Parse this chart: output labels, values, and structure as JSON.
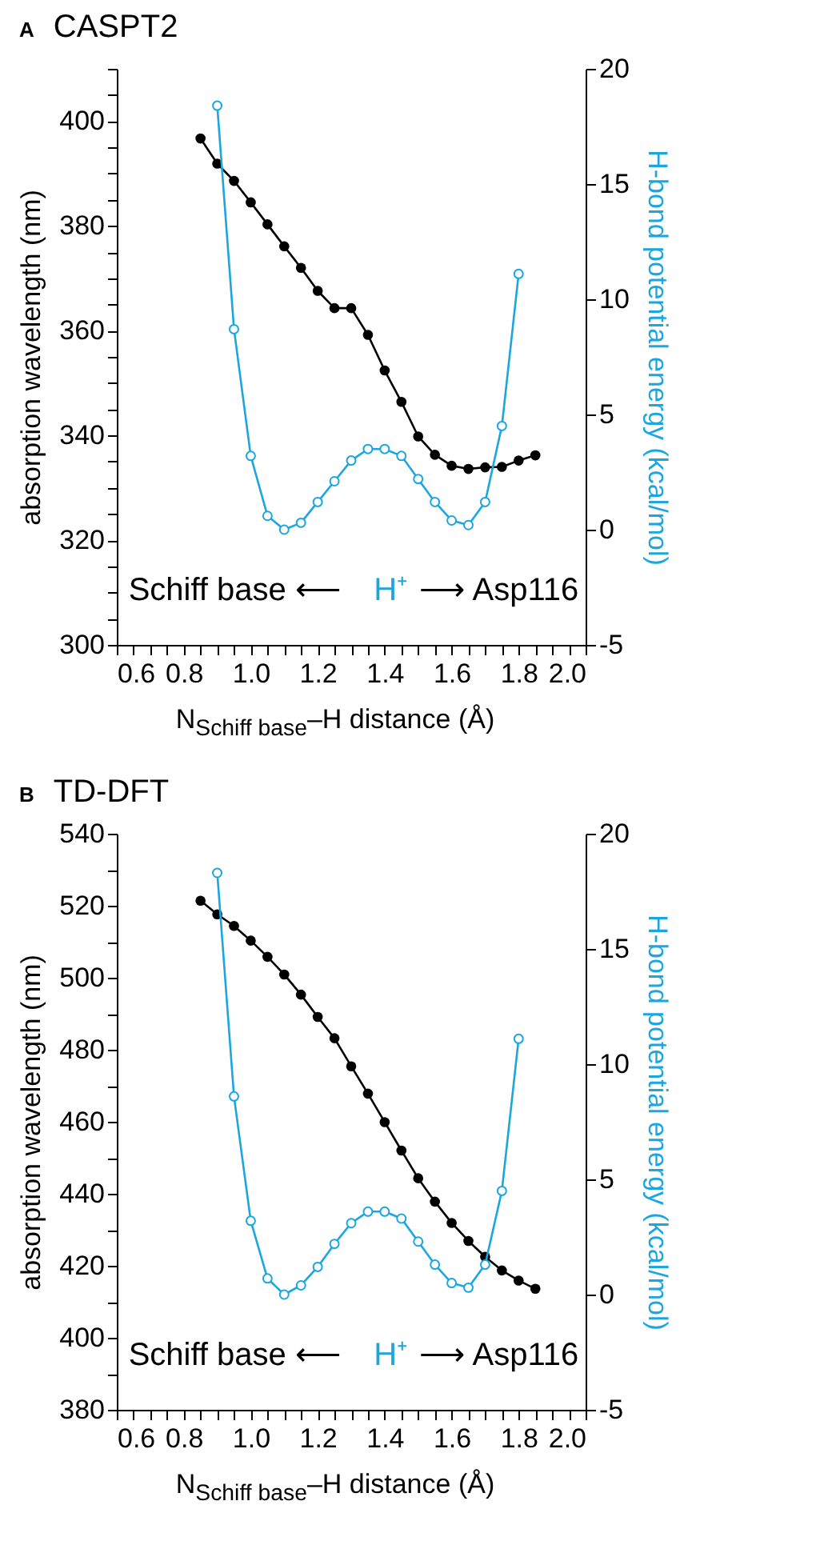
{
  "chart_data": [
    {
      "type": "line",
      "title": "CASPT2",
      "xlabel": "N$_{Schiff base}$–H distance (Å)",
      "ylabel": "absorption wavelength (nm)",
      "y2label": "H-bond potential energy (kcal/mol)",
      "annotations": [
        "A",
        "Schiff base ⟵",
        "H⁺",
        "⟶ Asp116"
      ],
      "x": [
        0.85,
        0.9,
        0.95,
        1,
        1.05,
        1.1,
        1.15,
        1.2,
        1.25,
        1.3,
        1.35,
        1.4,
        1.45,
        1.5,
        1.55,
        1.6,
        1.65,
        1.7,
        1.75,
        1.8,
        1.85
      ],
      "series": [
        {
          "color": "#000000",
          "values": [
            396.7,
            391.9,
            388.6,
            384.5,
            380.3,
            376.1,
            372.0,
            367.6,
            364.3,
            364.3,
            359.2,
            352.4,
            346.4,
            339.8,
            336.3,
            334.2,
            333.6,
            333.9,
            334.0,
            335.2,
            336.2
          ]
        },
        {
          "color": "#1ba6e0",
          "axis": "y2",
          "values": [
            null,
            18.4,
            8.7,
            3.2,
            0.6,
            0.0,
            0.3,
            1.2,
            2.1,
            3.0,
            3.5,
            3.5,
            3.2,
            2.2,
            1.2,
            0.4,
            0.2,
            1.2,
            4.5,
            11.1,
            null
          ]
        }
      ],
      "xlim": [
        0.6,
        2.0
      ],
      "xticks": [
        {
          "value": 0.6,
          "label": "0.6"
        },
        {
          "value": 0.65,
          "label": null
        },
        {
          "value": 0.7,
          "label": null
        },
        {
          "value": 0.75,
          "label": null
        },
        {
          "value": 0.8,
          "label": "0.8"
        },
        {
          "value": 0.85,
          "label": null
        },
        {
          "value": 0.9,
          "label": null
        },
        {
          "value": 0.95,
          "label": null
        },
        {
          "value": 1,
          "label": "1.0"
        },
        {
          "value": 1.05,
          "label": null
        },
        {
          "value": 1.1,
          "label": null
        },
        {
          "value": 1.15,
          "label": null
        },
        {
          "value": 1.2,
          "label": "1.2"
        },
        {
          "value": 1.25,
          "label": null
        },
        {
          "value": 1.3,
          "label": null
        },
        {
          "value": 1.35,
          "label": null
        },
        {
          "value": 1.4,
          "label": "1.4"
        },
        {
          "value": 1.45,
          "label": null
        },
        {
          "value": 1.5,
          "label": null
        },
        {
          "value": 1.55,
          "label": null
        },
        {
          "value": 1.6,
          "label": "1.6"
        },
        {
          "value": 1.65,
          "label": null
        },
        {
          "value": 1.7,
          "label": null
        },
        {
          "value": 1.75,
          "label": null
        },
        {
          "value": 1.8,
          "label": "1.8"
        },
        {
          "value": 1.85,
          "label": null
        },
        {
          "value": 1.9,
          "label": null
        },
        {
          "value": 1.95,
          "label": null
        },
        {
          "value": 2,
          "label": "2.0"
        }
      ],
      "ylim": [
        300,
        410
      ],
      "yticks": [
        300,
        {
          "value": 305,
          "label": null
        },
        {
          "value": 310,
          "label": null
        },
        {
          "value": 315,
          "label": null
        },
        320,
        {
          "value": 325,
          "label": null
        },
        {
          "value": 330,
          "label": null
        },
        {
          "value": 335,
          "label": null
        },
        340,
        {
          "value": 345,
          "label": null
        },
        {
          "value": 350,
          "label": null
        },
        {
          "value": 355,
          "label": null
        },
        360,
        {
          "value": 365,
          "label": null
        },
        {
          "value": 370,
          "label": null
        },
        {
          "value": 375,
          "label": null
        },
        380,
        {
          "value": 385,
          "label": null
        },
        {
          "value": 390,
          "label": null
        },
        {
          "value": 395,
          "label": null
        },
        400,
        {
          "value": 405,
          "label": null
        },
        {
          "value": 410,
          "label": null
        }
      ],
      "y2lim": [
        -5,
        20
      ],
      "y2ticks": [
        -5,
        0,
        5,
        10,
        15,
        20
      ],
      "marker": "circle"
    },
    {
      "type": "line",
      "title": "TD-DFT",
      "xlabel": "N$_{Schiff base}$–H distance (Å)",
      "ylabel": "absorption wavelength (nm)",
      "y2label": "H-bond potential energy (kcal/mol)",
      "annotations": [
        "B",
        "Schiff base ⟵",
        "H⁺",
        "⟶ Asp116"
      ],
      "x": [
        0.85,
        0.9,
        0.95,
        1,
        1.05,
        1.1,
        1.15,
        1.2,
        1.25,
        1.3,
        1.35,
        1.4,
        1.45,
        1.5,
        1.55,
        1.6,
        1.65,
        1.7,
        1.75,
        1.8,
        1.85
      ],
      "series": [
        {
          "color": "#000000",
          "values": [
            521.4,
            517.6,
            514.4,
            510.3,
            505.8,
            500.9,
            495.3,
            489.1,
            483.2,
            475.4,
            467.8,
            459.9,
            452.0,
            444.3,
            437.8,
            431.9,
            426.9,
            422.5,
            418.7,
            415.9,
            413.6
          ]
        },
        {
          "color": "#1ba6e0",
          "axis": "y2",
          "values": [
            null,
            18.3,
            8.6,
            3.2,
            0.7,
            0.0,
            0.4,
            1.2,
            2.2,
            3.1,
            3.6,
            3.6,
            3.3,
            2.3,
            1.3,
            0.5,
            0.3,
            1.3,
            4.5,
            11.1,
            null
          ]
        }
      ],
      "xlim": [
        0.6,
        2.0
      ],
      "xticks": [
        {
          "value": 0.6,
          "label": "0.6"
        },
        {
          "value": 0.65,
          "label": null
        },
        {
          "value": 0.7,
          "label": null
        },
        {
          "value": 0.75,
          "label": null
        },
        {
          "value": 0.8,
          "label": "0.8"
        },
        {
          "value": 0.85,
          "label": null
        },
        {
          "value": 0.9,
          "label": null
        },
        {
          "value": 0.95,
          "label": null
        },
        {
          "value": 1,
          "label": "1.0"
        },
        {
          "value": 1.05,
          "label": null
        },
        {
          "value": 1.1,
          "label": null
        },
        {
          "value": 1.15,
          "label": null
        },
        {
          "value": 1.2,
          "label": "1.2"
        },
        {
          "value": 1.25,
          "label": null
        },
        {
          "value": 1.3,
          "label": null
        },
        {
          "value": 1.35,
          "label": null
        },
        {
          "value": 1.4,
          "label": "1.4"
        },
        {
          "value": 1.45,
          "label": null
        },
        {
          "value": 1.5,
          "label": null
        },
        {
          "value": 1.55,
          "label": null
        },
        {
          "value": 1.6,
          "label": "1.6"
        },
        {
          "value": 1.65,
          "label": null
        },
        {
          "value": 1.7,
          "label": null
        },
        {
          "value": 1.75,
          "label": null
        },
        {
          "value": 1.8,
          "label": "1.8"
        },
        {
          "value": 1.85,
          "label": null
        },
        {
          "value": 1.9,
          "label": null
        },
        {
          "value": 1.95,
          "label": null
        },
        {
          "value": 2,
          "label": "2.0"
        }
      ],
      "ylim": [
        380,
        540
      ],
      "yticks": [
        380,
        {
          "value": 390,
          "label": null
        },
        400,
        {
          "value": 410,
          "label": null
        },
        420,
        {
          "value": 430,
          "label": null
        },
        440,
        {
          "value": 450,
          "label": null
        },
        460,
        {
          "value": 470,
          "label": null
        },
        480,
        {
          "value": 490,
          "label": null
        },
        500,
        {
          "value": 510,
          "label": null
        },
        520,
        {
          "value": 530,
          "label": null
        },
        540
      ],
      "y2lim": [
        -5,
        20
      ],
      "y2ticks": [
        -5,
        0,
        5,
        10,
        15,
        20
      ],
      "marker": "circle"
    }
  ]
}
